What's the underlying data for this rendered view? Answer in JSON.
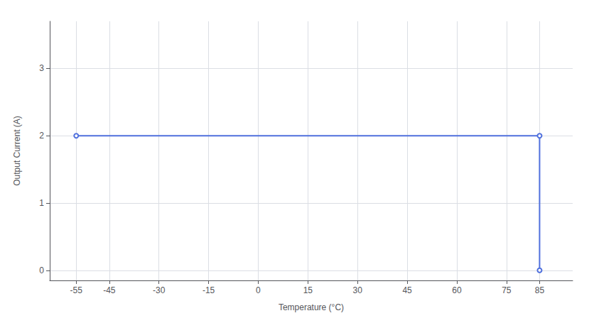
{
  "chart_data": {
    "type": "line",
    "xlabel": "Temperature (°C)",
    "ylabel": "Output Current (A)",
    "x": [
      -55,
      85,
      85
    ],
    "values": [
      2,
      2,
      0
    ],
    "xlim": [
      -63,
      95
    ],
    "ylim": [
      -0.15,
      3.7
    ],
    "xticks": [
      -55,
      -45,
      -30,
      -15,
      0,
      15,
      30,
      45,
      60,
      75,
      85
    ],
    "yticks": [
      0,
      1,
      2,
      3
    ],
    "grid": true
  }
}
